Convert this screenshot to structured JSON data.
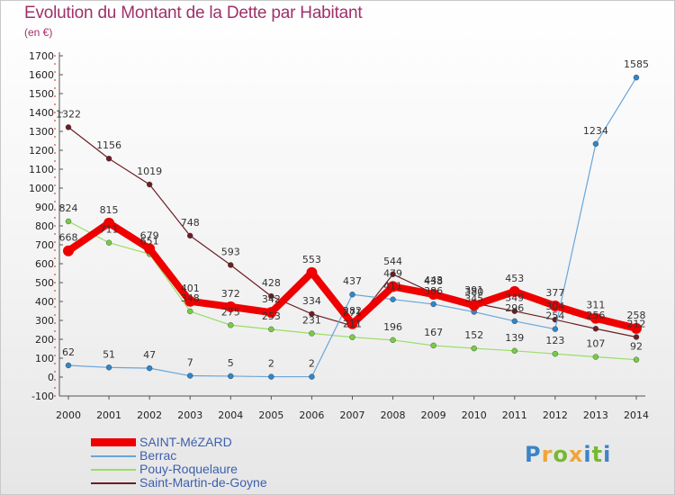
{
  "title": "Evolution du Montant de la Dette par Habitant",
  "subtitle": "(en €)",
  "brand": {
    "letters": [
      "P",
      "r",
      "o",
      "x",
      "i",
      "t",
      "i"
    ],
    "colors": [
      "#3e84c6",
      "#f0a53a",
      "#78b830",
      "#f0a53a",
      "#3e84c6",
      "#78b830",
      "#3e84c6"
    ]
  },
  "chart_data": {
    "type": "line",
    "title": "Evolution du Montant de la Dette par Habitant",
    "ylabel": "(en €)",
    "xlabel": "",
    "ylim": [
      -100,
      1700
    ],
    "yticks": [
      -100,
      0,
      100,
      200,
      300,
      400,
      500,
      600,
      700,
      800,
      900,
      1000,
      1100,
      1200,
      1300,
      1400,
      1500,
      1600,
      1700
    ],
    "grid": false,
    "legend": "bottom-left",
    "categories": [
      "2000",
      "2001",
      "2002",
      "2003",
      "2004",
      "2005",
      "2006",
      "2007",
      "2008",
      "2009",
      "2010",
      "2011",
      "2012",
      "2013",
      "2014"
    ],
    "series": [
      {
        "name": "Saint-Martin-de-Goyne",
        "color": "#6b1e24",
        "width": 1.2,
        "point_color": "#6b1e24",
        "values": [
          1322,
          1156,
          1019,
          748,
          593,
          428,
          334,
          271,
          544,
          443,
          391,
          349,
          304,
          256,
          212
        ],
        "labels": [
          "1322",
          "1156",
          "1019",
          "748",
          "593",
          "428",
          "334",
          "271",
          "544",
          "443",
          "391",
          "349",
          "304",
          "256",
          "212"
        ]
      },
      {
        "name": "Pouy-Roquelaure",
        "color": "#99dd66",
        "width": 1.2,
        "point_color": "#77cc44",
        "values": [
          824,
          711,
          651,
          348,
          275,
          253,
          231,
          211,
          196,
          167,
          152,
          139,
          123,
          107,
          92
        ],
        "labels": [
          "824",
          "711",
          "651",
          "348",
          "275",
          "253",
          "231",
          "211",
          "196",
          "167",
          "152",
          "139",
          "123",
          "107",
          "92"
        ]
      },
      {
        "name": "Berrac",
        "color": "#6aa5d8",
        "width": 1.2,
        "point_color": "#2f86c9",
        "values": [
          62,
          51,
          47,
          7,
          5,
          2,
          2,
          437,
          411,
          386,
          345,
          296,
          254,
          1234,
          1585
        ],
        "labels": [
          "62",
          "51",
          "47",
          "7",
          "5",
          "2",
          "2",
          "437",
          "411",
          "386",
          "345",
          "296",
          "254",
          "1234",
          "1585"
        ]
      },
      {
        "name": "SAINT-MéZARD",
        "color": "#ee0000",
        "width": 8,
        "point_color": "#ee0000",
        "values": [
          668,
          815,
          679,
          401,
          372,
          342,
          553,
          282,
          479,
          438,
          380,
          453,
          377,
          311,
          258
        ],
        "labels": [
          "668",
          "815",
          "679",
          "401",
          "372",
          "342",
          "553",
          "282",
          "479",
          "438",
          "380",
          "453",
          "377",
          "311",
          "258"
        ]
      }
    ]
  },
  "legend_items": [
    {
      "label": "SAINT-MéZARD",
      "color": "#ee0000",
      "style": "thick"
    },
    {
      "label": "Berrac",
      "color": "#6aa5d8",
      "style": "thin"
    },
    {
      "label": "Pouy-Roquelaure",
      "color": "#99dd66",
      "style": "thin"
    },
    {
      "label": "Saint-Martin-de-Goyne",
      "color": "#6b1e24",
      "style": "thin"
    }
  ]
}
